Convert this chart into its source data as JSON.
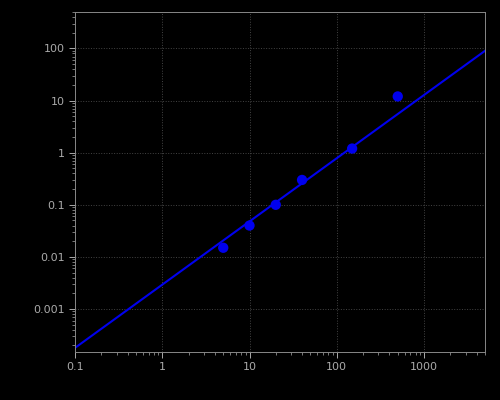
{
  "x_data": [
    5,
    10,
    20,
    40,
    150,
    500
  ],
  "y_data": [
    0.015,
    0.04,
    0.1,
    0.3,
    1.2,
    12
  ],
  "line_x": [
    0.1,
    5000
  ],
  "line_y": [
    0.00018,
    90
  ],
  "xlim": [
    0.1,
    5000
  ],
  "ylim": [
    0.00015,
    500
  ],
  "background_color": "#000000",
  "grid_color": "#555555",
  "line_color": "#0000ee",
  "dot_color": "#0000ee",
  "dot_size": 55,
  "tick_label_color": "#aaaaaa",
  "spine_color": "#888888",
  "x_ticks": [
    0.1,
    1,
    10,
    100,
    1000
  ],
  "y_ticks": [
    0.001,
    0.01,
    0.1,
    1,
    10,
    100
  ],
  "x_tick_labels": [
    "0.1",
    "1",
    "10",
    "100",
    "1000"
  ],
  "y_tick_labels": [
    "0.001",
    "0.01",
    "0.1",
    "1",
    "10",
    "100"
  ]
}
